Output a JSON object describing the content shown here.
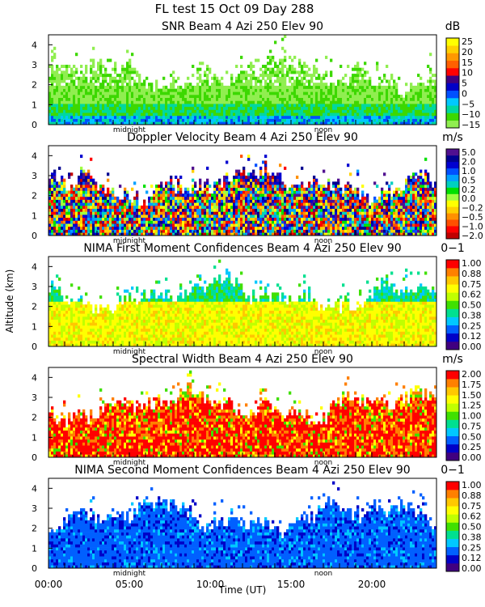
{
  "figure": {
    "title": "FL test  15 Oct 09 Day 288",
    "ylabel": "Altitude (km)",
    "xlabel": "Time (UT)",
    "x_ticks": [
      "00:00",
      "05:00",
      "10:00",
      "15:00",
      "20:00"
    ],
    "x_tick_hours": [
      0,
      5,
      10,
      15,
      20
    ],
    "xlim_hours": [
      0,
      24
    ],
    "midnight_label": "midnight",
    "noon_label": "noon",
    "midnight_hour": 5,
    "noon_hour": 17
  },
  "chart_data": [
    {
      "type": "heatmap",
      "title": "SNR Beam 4 Azi 250 Elev 90",
      "unit": "dB",
      "ylim": [
        0,
        4.5
      ],
      "y_ticks": [
        "0",
        "1",
        "2",
        "3",
        "4"
      ],
      "colorbar_ticks": [
        "25",
        "20",
        "15",
        "10",
        "5",
        "0",
        "−5",
        "−10",
        "−15"
      ],
      "colors": [
        "#90ee50",
        "#3cd800",
        "#00d8a0",
        "#00c8ff",
        "#0050ff",
        "#0000c8",
        "#400080",
        "#ff0000",
        "#ff6000",
        "#ff9800",
        "#ffd000",
        "#ffff00"
      ],
      "dominant_color_indices": [
        0,
        1,
        1,
        0
      ],
      "pattern": "snr"
    },
    {
      "type": "heatmap",
      "title": "Doppler Velocity Beam 4 Azi 250 Elev 90",
      "unit": "m/s",
      "ylim": [
        0,
        4.5
      ],
      "y_ticks": [
        "0",
        "1",
        "2",
        "3",
        "4"
      ],
      "colorbar_ticks": [
        "5.0",
        "2.0",
        "1.0",
        "0.5",
        "0.2",
        "0.0",
        "−0.2",
        "−0.5",
        "−1.0",
        "−2.0"
      ],
      "colors": [
        "#c00000",
        "#ff0000",
        "#ff5000",
        "#ff9000",
        "#ffd000",
        "#ffff00",
        "#a0ff40",
        "#00e000",
        "#00d0c0",
        "#00a0ff",
        "#0050ff",
        "#0000d0",
        "#000090",
        "#501090"
      ],
      "pattern": "doppler"
    },
    {
      "type": "heatmap",
      "title": "NIMA First Moment Confidences Beam 4 Azi 250 Elev 90",
      "unit": "0−1",
      "ylim": [
        0,
        4.5
      ],
      "y_ticks": [
        "0",
        "1",
        "2",
        "3",
        "4"
      ],
      "colorbar_ticks": [
        "1.00",
        "0.88",
        "0.75",
        "0.62",
        "0.50",
        "0.38",
        "0.25",
        "0.12",
        "0.00"
      ],
      "colors": [
        "#400080",
        "#0000c8",
        "#0060ff",
        "#00c8ff",
        "#00e090",
        "#40e000",
        "#c0ff00",
        "#ffff00",
        "#ffc800",
        "#ff8000",
        "#ff0000"
      ],
      "pattern": "conf1"
    },
    {
      "type": "heatmap",
      "title": "Spectral Width Beam 4 Azi 250 Elev 90",
      "unit": "m/s",
      "ylim": [
        0,
        4.5
      ],
      "y_ticks": [
        "0",
        "1",
        "2",
        "3",
        "4"
      ],
      "colorbar_ticks": [
        "2.00",
        "1.75",
        "1.50",
        "1.25",
        "1.00",
        "0.75",
        "0.50",
        "0.25",
        "0.00"
      ],
      "colors": [
        "#400080",
        "#0000c8",
        "#0060ff",
        "#00c8ff",
        "#00e090",
        "#40e000",
        "#c0ff00",
        "#ffff00",
        "#ffc800",
        "#ff8000",
        "#ff0000"
      ],
      "pattern": "width"
    },
    {
      "type": "heatmap",
      "title": "NIMA Second Moment Confidences Beam 4 Azi 250 Elev 90",
      "unit": "0−1",
      "ylim": [
        0,
        4.5
      ],
      "y_ticks": [
        "0",
        "1",
        "2",
        "3",
        "4"
      ],
      "colorbar_ticks": [
        "1.00",
        "0.88",
        "0.75",
        "0.62",
        "0.50",
        "0.38",
        "0.25",
        "0.12",
        "0.00"
      ],
      "colors": [
        "#400080",
        "#0000c8",
        "#0060ff",
        "#00c8ff",
        "#00e090",
        "#40e000",
        "#c0ff00",
        "#ffff00",
        "#ffc800",
        "#ff8000",
        "#ff0000"
      ],
      "pattern": "conf2"
    }
  ]
}
